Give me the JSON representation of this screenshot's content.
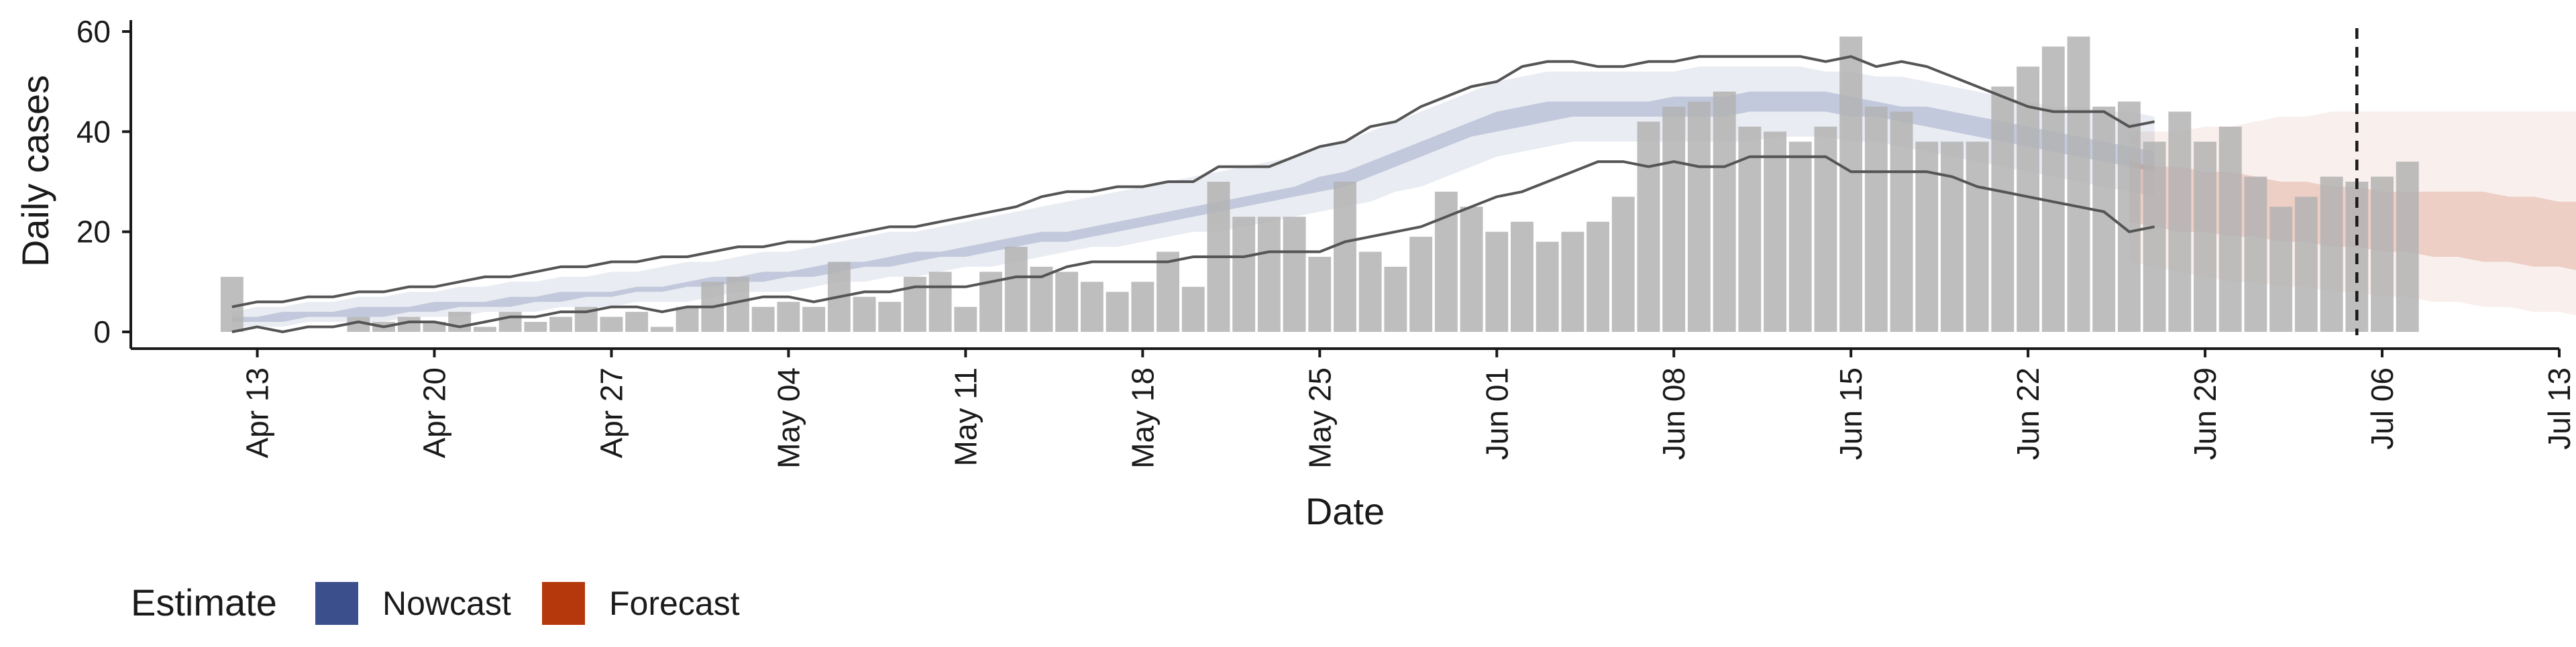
{
  "chart_data": {
    "type": "bar",
    "xlabel": "Date",
    "ylabel": "Daily cases",
    "ylim": [
      0,
      60
    ],
    "y_ticks": [
      "0",
      "20",
      "40",
      "60"
    ],
    "x_ticks": [
      {
        "date": "2020-04-13",
        "label": "Apr 13"
      },
      {
        "date": "2020-04-20",
        "label": "Apr 20"
      },
      {
        "date": "2020-04-27",
        "label": "Apr 27"
      },
      {
        "date": "2020-05-04",
        "label": "May 04"
      },
      {
        "date": "2020-05-11",
        "label": "May 11"
      },
      {
        "date": "2020-05-18",
        "label": "May 18"
      },
      {
        "date": "2020-05-25",
        "label": "May 25"
      },
      {
        "date": "2020-06-01",
        "label": "Jun 01"
      },
      {
        "date": "2020-06-08",
        "label": "Jun 08"
      },
      {
        "date": "2020-06-15",
        "label": "Jun 15"
      },
      {
        "date": "2020-06-22",
        "label": "Jun 22"
      },
      {
        "date": "2020-06-29",
        "label": "Jun 29"
      },
      {
        "date": "2020-07-06",
        "label": "Jul 06"
      },
      {
        "date": "2020-07-13",
        "label": "Jul 13"
      }
    ],
    "x_range": [
      "2020-04-08",
      "2020-07-13"
    ],
    "grid": false,
    "bars": {
      "name": "Daily cases",
      "color": "#b3b3b3",
      "start_date": "2020-04-12",
      "values": [
        11,
        0,
        0,
        0,
        0,
        3,
        2,
        3,
        2,
        4,
        1,
        4,
        2,
        3,
        5,
        3,
        4,
        1,
        5,
        10,
        11,
        5,
        6,
        5,
        14,
        7,
        6,
        11,
        12,
        5,
        12,
        17,
        13,
        12,
        10,
        8,
        10,
        16,
        9,
        30,
        23,
        23,
        23,
        15,
        30,
        16,
        13,
        19,
        28,
        25,
        20,
        22,
        18,
        20,
        22,
        27,
        42,
        45,
        46,
        48,
        41,
        40,
        38,
        41,
        59,
        45,
        44,
        38,
        38,
        38,
        49,
        53,
        57,
        59,
        45,
        46,
        38,
        44,
        38,
        41,
        31,
        25,
        27,
        31,
        30,
        31,
        34
      ]
    },
    "reference_line": {
      "date": "2020-07-05",
      "style": "dashed",
      "color": "#1a1a1a"
    },
    "bounds_lines": {
      "color": "#555555",
      "start_date": "2020-04-12",
      "upper": [
        5,
        6,
        6,
        7,
        7,
        8,
        8,
        9,
        9,
        10,
        11,
        11,
        12,
        13,
        13,
        14,
        14,
        15,
        15,
        16,
        17,
        17,
        18,
        18,
        19,
        20,
        21,
        21,
        22,
        23,
        24,
        25,
        27,
        28,
        28,
        29,
        29,
        30,
        30,
        33,
        33,
        33,
        35,
        37,
        38,
        41,
        42,
        45,
        47,
        49,
        50,
        53,
        54,
        54,
        53,
        53,
        54,
        54,
        55,
        55,
        55,
        55,
        55,
        54,
        55,
        53,
        54,
        53,
        51,
        49,
        47,
        45,
        44,
        44,
        44,
        41,
        42
      ],
      "lower": [
        0,
        1,
        0,
        1,
        1,
        2,
        1,
        2,
        2,
        1,
        2,
        3,
        3,
        4,
        4,
        5,
        5,
        4,
        5,
        5,
        6,
        7,
        7,
        6,
        7,
        8,
        8,
        9,
        9,
        9,
        10,
        11,
        11,
        13,
        14,
        14,
        14,
        14,
        15,
        15,
        15,
        16,
        16,
        16,
        18,
        19,
        20,
        21,
        23,
        25,
        27,
        28,
        30,
        32,
        34,
        34,
        33,
        34,
        33,
        33,
        35,
        35,
        35,
        35,
        32,
        32,
        32,
        32,
        31,
        29,
        28,
        27,
        26,
        25,
        24,
        20,
        21
      ]
    },
    "series": [
      {
        "name": "Nowcast",
        "color": "#3b4f8c",
        "start_date": "2020-04-12",
        "outer_lower": [
          1,
          1,
          1,
          2,
          2,
          2,
          2,
          3,
          3,
          3,
          4,
          4,
          4,
          5,
          5,
          5,
          6,
          6,
          6,
          7,
          8,
          8,
          8,
          9,
          10,
          10,
          11,
          11,
          12,
          13,
          13,
          14,
          15,
          16,
          17,
          17,
          18,
          19,
          20,
          20,
          21,
          22,
          23,
          24,
          25,
          26,
          28,
          29,
          31,
          33,
          35,
          36,
          37,
          38,
          38,
          38,
          38,
          38,
          38,
          38,
          38,
          39,
          39,
          39,
          38,
          38,
          37,
          36,
          35,
          34,
          33,
          32,
          31,
          30,
          29,
          28,
          27
        ],
        "outer_upper": [
          4,
          5,
          5,
          6,
          6,
          7,
          7,
          8,
          8,
          9,
          9,
          10,
          10,
          11,
          11,
          12,
          12,
          13,
          14,
          14,
          15,
          16,
          16,
          17,
          18,
          19,
          20,
          20,
          21,
          22,
          23,
          24,
          25,
          26,
          27,
          28,
          29,
          30,
          31,
          32,
          33,
          34,
          35,
          37,
          38,
          40,
          42,
          44,
          46,
          48,
          50,
          51,
          52,
          52,
          52,
          52,
          52,
          52,
          53,
          53,
          53,
          53,
          53,
          52,
          52,
          51,
          51,
          50,
          49,
          48,
          47,
          46,
          45,
          45,
          44,
          44,
          43
        ],
        "inner_lower": [
          2,
          2,
          2,
          3,
          3,
          3,
          3,
          4,
          4,
          5,
          5,
          5,
          6,
          6,
          7,
          7,
          8,
          8,
          9,
          9,
          10,
          10,
          11,
          11,
          12,
          13,
          13,
          14,
          15,
          15,
          16,
          17,
          18,
          18,
          19,
          20,
          21,
          22,
          23,
          24,
          25,
          26,
          27,
          28,
          29,
          31,
          33,
          35,
          37,
          39,
          40,
          41,
          42,
          43,
          43,
          43,
          43,
          43,
          43,
          43,
          44,
          44,
          44,
          44,
          43,
          43,
          42,
          41,
          40,
          39,
          38,
          37,
          36,
          35,
          34,
          33,
          32
        ],
        "inner_upper": [
          3,
          3,
          4,
          4,
          4,
          5,
          5,
          5,
          6,
          6,
          6,
          7,
          7,
          8,
          8,
          8,
          9,
          9,
          10,
          11,
          11,
          12,
          12,
          13,
          14,
          14,
          15,
          16,
          16,
          17,
          18,
          19,
          20,
          20,
          21,
          22,
          23,
          24,
          25,
          26,
          27,
          28,
          29,
          31,
          32,
          34,
          36,
          38,
          40,
          42,
          44,
          45,
          46,
          46,
          46,
          46,
          46,
          47,
          47,
          47,
          48,
          48,
          48,
          48,
          47,
          46,
          45,
          45,
          44,
          43,
          42,
          41,
          40,
          39,
          38,
          37,
          36
        ]
      },
      {
        "name": "Forecast",
        "color": "#b5380c",
        "start_date": "2020-06-26",
        "outer_lower": [
          14,
          13,
          12,
          11,
          10,
          10,
          9,
          9,
          8,
          8,
          7,
          7,
          6,
          6,
          5,
          5,
          4,
          4,
          3,
          3,
          2,
          2,
          1,
          1
        ],
        "outer_upper": [
          40,
          40,
          40,
          41,
          41,
          42,
          43,
          43,
          44,
          44,
          44,
          44,
          44,
          44,
          44,
          44,
          44,
          44,
          44,
          44,
          44,
          43,
          43,
          42
        ],
        "inner_lower": [
          22,
          21,
          20,
          20,
          19,
          19,
          18,
          18,
          17,
          17,
          16,
          16,
          15,
          15,
          14,
          14,
          13,
          13,
          12,
          12,
          11,
          11,
          10,
          10
        ],
        "inner_upper": [
          34,
          33,
          33,
          32,
          32,
          31,
          30,
          30,
          29,
          29,
          28,
          28,
          28,
          28,
          28,
          27,
          27,
          26,
          26,
          25,
          25,
          24,
          24,
          23
        ]
      }
    ],
    "legend": {
      "title": "Estimate",
      "position": "bottom-left",
      "items": [
        {
          "label": "Nowcast",
          "color": "#3b4f8c"
        },
        {
          "label": "Forecast",
          "color": "#b5380c"
        }
      ]
    }
  }
}
